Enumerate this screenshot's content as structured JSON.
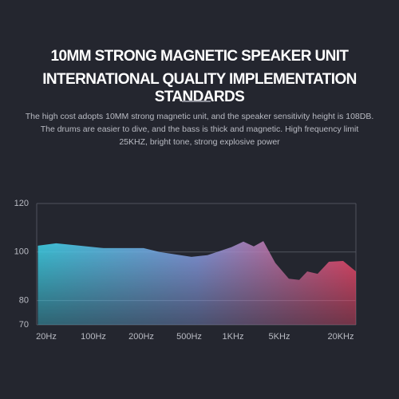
{
  "header": {
    "title_lines": [
      "10MM STRONG MAGNETIC SPEAKER UNIT",
      "INTERNATIONAL QUALITY IMPLEMENTATION STANDARDS"
    ],
    "description_lines": [
      "The high cost adopts 10MM strong magnetic unit, and the speaker sensitivity height is 108DB.",
      "The drums are easier to dive, and the bass is thick and magnetic. High frequency limit",
      "25KHZ, bright tone, strong explosive power"
    ]
  },
  "chart_data": {
    "type": "area",
    "x": [
      15,
      28,
      63,
      116,
      209,
      284,
      519,
      668,
      974,
      1435,
      2058,
      2870,
      4354,
      6200,
      7840,
      9390,
      11860,
      15300,
      21100,
      28160
    ],
    "values": [
      102.6,
      103.6,
      102.6,
      101.6,
      101.6,
      100,
      98,
      98.7,
      102,
      104.3,
      102.3,
      104.5,
      95.5,
      89,
      88.5,
      92,
      91,
      96,
      96.3,
      92
    ],
    "gradient": [
      "#3fd3ea",
      "#8aa0e8",
      "#ff4a6e"
    ],
    "ylim": [
      70,
      120
    ],
    "yticks": [
      70,
      80,
      100,
      120
    ],
    "xlim": [
      15,
      28160
    ],
    "xticks": [
      {
        "value": 20,
        "label": "20Hz"
      },
      {
        "value": 100,
        "label": "100Hz"
      },
      {
        "value": 200,
        "label": "200Hz"
      },
      {
        "value": 500,
        "label": "500Hz"
      },
      {
        "value": 1000,
        "label": "1KHz"
      },
      {
        "value": 5000,
        "label": "5KHz"
      },
      {
        "value": 20000,
        "label": "20KHz"
      }
    ],
    "grid": true
  }
}
